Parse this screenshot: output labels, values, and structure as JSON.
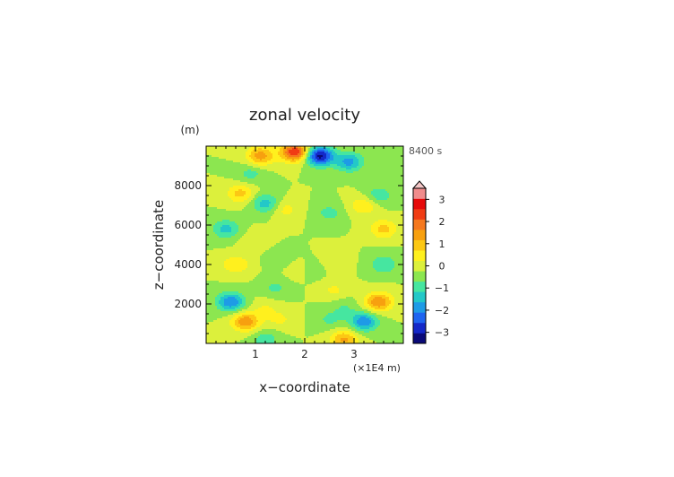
{
  "chart_data": {
    "type": "heatmap",
    "title": "zonal velocity",
    "time_label": "8400 s",
    "xlabel": "x−coordinate",
    "x_unit_label": "(×1E4 m)",
    "ylabel": "z−coordinate",
    "y_unit_label": "(m)",
    "xlim": [
      0,
      4
    ],
    "ylim": [
      0,
      10000
    ],
    "x_ticks": [
      {
        "value": 1,
        "label": "1"
      },
      {
        "value": 2,
        "label": "2"
      },
      {
        "value": 3,
        "label": "3"
      }
    ],
    "y_ticks": [
      {
        "value": 2000,
        "label": "2000"
      },
      {
        "value": 4000,
        "label": "4000"
      },
      {
        "value": 6000,
        "label": "6000"
      },
      {
        "value": 8000,
        "label": "8000"
      }
    ],
    "colorbar": {
      "min": -3.5,
      "max": 3.5,
      "step": 0.5,
      "extend": "max",
      "ticks": [
        {
          "value": 3,
          "label": "3"
        },
        {
          "value": 2,
          "label": "2"
        },
        {
          "value": 1,
          "label": "1"
        },
        {
          "value": 0,
          "label": "0"
        },
        {
          "value": -1,
          "label": "−1"
        },
        {
          "value": -2,
          "label": "−2"
        },
        {
          "value": -3,
          "label": "−3"
        }
      ],
      "colors": [
        "#0a0a78",
        "#1428c8",
        "#1e64f0",
        "#1e9be6",
        "#23c8c8",
        "#46e6a0",
        "#8ce650",
        "#dcf03c",
        "#fff01e",
        "#fcc814",
        "#f7a00f",
        "#f5781e",
        "#f03c14",
        "#e60a0a",
        "#f08c8c"
      ]
    },
    "field_features": [
      {
        "x": 1.8,
        "z": 9700,
        "value": 3.0
      },
      {
        "x": 1.1,
        "z": 9500,
        "value": 1.8
      },
      {
        "x": 2.3,
        "z": 9500,
        "value": -3.2
      },
      {
        "x": 2.9,
        "z": 9200,
        "value": -1.7
      },
      {
        "x": 0.9,
        "z": 8600,
        "value": -0.7
      },
      {
        "x": 0.7,
        "z": 7600,
        "value": 1.2
      },
      {
        "x": 3.5,
        "z": 7500,
        "value": -0.9
      },
      {
        "x": 1.2,
        "z": 7100,
        "value": -1.3
      },
      {
        "x": 3.2,
        "z": 7000,
        "value": 1.0
      },
      {
        "x": 1.6,
        "z": 6800,
        "value": 0.7
      },
      {
        "x": 2.5,
        "z": 6600,
        "value": -0.7
      },
      {
        "x": 0.4,
        "z": 5800,
        "value": -1.2
      },
      {
        "x": 3.6,
        "z": 5800,
        "value": 1.2
      },
      {
        "x": 1.0,
        "z": 5200,
        "value": 0.5
      },
      {
        "x": 0.6,
        "z": 4000,
        "value": 1.0
      },
      {
        "x": 3.6,
        "z": 4000,
        "value": -1.0
      },
      {
        "x": 1.5,
        "z": 4300,
        "value": -0.5
      },
      {
        "x": 2.6,
        "z": 4200,
        "value": 0.5
      },
      {
        "x": 1.4,
        "z": 2800,
        "value": -0.6
      },
      {
        "x": 2.6,
        "z": 2700,
        "value": 0.6
      },
      {
        "x": 0.5,
        "z": 2100,
        "value": -2.0
      },
      {
        "x": 3.5,
        "z": 2100,
        "value": 2.0
      },
      {
        "x": 1.2,
        "z": 1800,
        "value": 0.5
      },
      {
        "x": 2.8,
        "z": 1800,
        "value": -0.5
      },
      {
        "x": 0.8,
        "z": 1100,
        "value": 1.9
      },
      {
        "x": 3.2,
        "z": 1100,
        "value": -1.9
      },
      {
        "x": 1.5,
        "z": 1200,
        "value": 0.6
      },
      {
        "x": 2.5,
        "z": 1200,
        "value": -0.6
      },
      {
        "x": 1.2,
        "z": 200,
        "value": -0.8
      },
      {
        "x": 2.8,
        "z": 200,
        "value": 1.6
      },
      {
        "x": 1.9,
        "z": 3800,
        "value": 0.6
      },
      {
        "x": 2.1,
        "z": 3800,
        "value": -0.6
      }
    ]
  }
}
